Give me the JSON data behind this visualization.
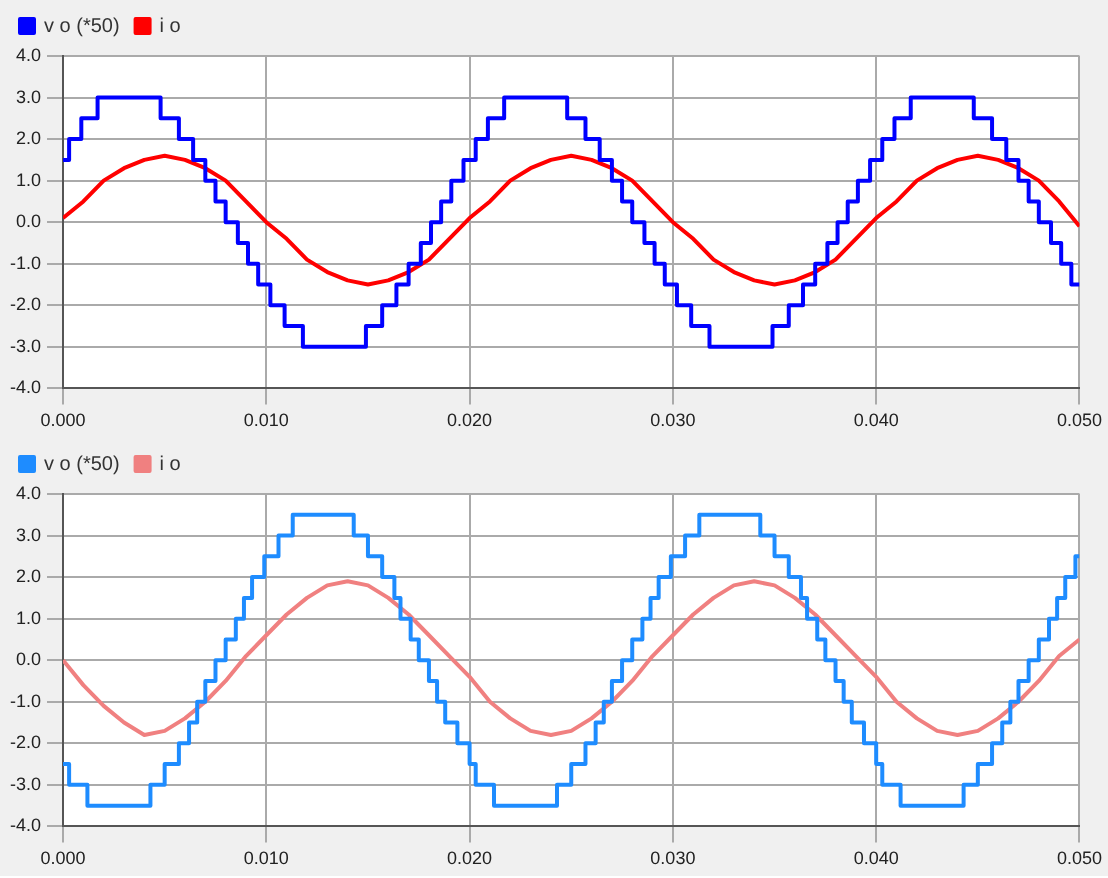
{
  "chart_data": [
    {
      "type": "line",
      "legend": "top",
      "grid": true,
      "marker": "none",
      "line_style": "solid",
      "xlim": [
        0,
        0.05
      ],
      "xticks": [
        {
          "value": 0,
          "label": "0.000"
        },
        {
          "value": 0.01,
          "label": "0.010"
        },
        {
          "value": 0.02,
          "label": "0.020"
        },
        {
          "value": 0.03,
          "label": "0.030"
        },
        {
          "value": 0.04,
          "label": "0.040"
        },
        {
          "value": 0.05,
          "label": "0.050"
        }
      ],
      "ylim": [
        -4,
        4
      ],
      "yticks": [
        {
          "value": -4,
          "label": "-4.0"
        },
        {
          "value": -3,
          "label": "-3.0"
        },
        {
          "value": -2,
          "label": "-2.0"
        },
        {
          "value": -1,
          "label": "-1.0"
        },
        {
          "value": 0,
          "label": "0.0"
        },
        {
          "value": 1,
          "label": "1.0"
        },
        {
          "value": 2,
          "label": "2.0"
        },
        {
          "value": 3,
          "label": "3.0"
        },
        {
          "value": 4,
          "label": "4.0"
        }
      ],
      "series": [
        {
          "name": "v o (*50)",
          "type": "step",
          "color": "#0000ff",
          "x": [
            0,
            0.0003,
            0.0009,
            0.0017,
            0.0048,
            0.0057,
            0.0064,
            0.007,
            0.0075,
            0.008,
            0.0086,
            0.0091,
            0.0096,
            0.0102,
            0.0109,
            0.0118,
            0.0149,
            0.0157,
            0.0164,
            0.017,
            0.0176,
            0.0181,
            0.0186,
            0.0191,
            0.0197,
            0.0203,
            0.0209,
            0.0217,
            0.0248,
            0.0257,
            0.0264,
            0.027,
            0.0275,
            0.028,
            0.0286,
            0.0291,
            0.0296,
            0.0302,
            0.0309,
            0.0318,
            0.0349,
            0.0357,
            0.0364,
            0.037,
            0.0376,
            0.0381,
            0.0386,
            0.0391,
            0.0397,
            0.0403,
            0.0409,
            0.0417,
            0.0448,
            0.0457,
            0.0464,
            0.047,
            0.0475,
            0.048,
            0.0486,
            0.0491,
            0.0496,
            0.05
          ],
          "values": [
            1.5,
            2.0,
            2.5,
            3.0,
            2.5,
            2.0,
            1.5,
            1.0,
            0.5,
            0,
            -0.5,
            -1.0,
            -1.5,
            -2.0,
            -2.5,
            -3.0,
            -2.5,
            -2.0,
            -1.5,
            -1.0,
            -0.5,
            0,
            0.5,
            1.0,
            1.5,
            2.0,
            2.5,
            3.0,
            2.5,
            2.0,
            1.5,
            1.0,
            0.5,
            0,
            -0.5,
            -1.0,
            -1.5,
            -2.0,
            -2.5,
            -3.0,
            -2.5,
            -2.0,
            -1.5,
            -1.0,
            -0.5,
            0,
            0.5,
            1.0,
            1.5,
            2.0,
            2.5,
            3.0,
            2.5,
            2.0,
            1.5,
            1.0,
            0.5,
            0,
            -0.5,
            -1.0,
            -1.5,
            -1.5
          ]
        },
        {
          "name": "i o",
          "type": "line",
          "color": "#ff0000",
          "x": [
            0,
            0.001,
            0.002,
            0.003,
            0.004,
            0.005,
            0.006,
            0.007,
            0.008,
            0.009,
            0.01,
            0.011,
            0.012,
            0.013,
            0.014,
            0.015,
            0.016,
            0.017,
            0.018,
            0.019,
            0.02,
            0.021,
            0.022,
            0.023,
            0.024,
            0.025,
            0.026,
            0.027,
            0.028,
            0.029,
            0.03,
            0.031,
            0.032,
            0.033,
            0.034,
            0.035,
            0.036,
            0.037,
            0.038,
            0.039,
            0.04,
            0.041,
            0.042,
            0.043,
            0.044,
            0.045,
            0.046,
            0.047,
            0.048,
            0.049,
            0.05
          ],
          "values": [
            0.1,
            0.5,
            1.0,
            1.3,
            1.5,
            1.6,
            1.5,
            1.3,
            1.0,
            0.5,
            0.0,
            -0.4,
            -0.9,
            -1.2,
            -1.4,
            -1.5,
            -1.4,
            -1.2,
            -0.9,
            -0.4,
            0.1,
            0.5,
            1.0,
            1.3,
            1.5,
            1.6,
            1.5,
            1.3,
            1.0,
            0.5,
            0.0,
            -0.4,
            -0.9,
            -1.2,
            -1.4,
            -1.5,
            -1.4,
            -1.2,
            -0.9,
            -0.4,
            0.1,
            0.5,
            1.0,
            1.3,
            1.5,
            1.6,
            1.5,
            1.3,
            1.0,
            0.5,
            -0.1
          ]
        }
      ]
    },
    {
      "type": "line",
      "legend": "top",
      "grid": true,
      "marker": "none",
      "line_style": "solid",
      "xlim": [
        0,
        0.05
      ],
      "xticks": [
        {
          "value": 0,
          "label": "0.000"
        },
        {
          "value": 0.01,
          "label": "0.010"
        },
        {
          "value": 0.02,
          "label": "0.020"
        },
        {
          "value": 0.03,
          "label": "0.030"
        },
        {
          "value": 0.04,
          "label": "0.040"
        },
        {
          "value": 0.05,
          "label": "0.050"
        }
      ],
      "ylim": [
        -4,
        4
      ],
      "yticks": [
        {
          "value": -4,
          "label": "-4.0"
        },
        {
          "value": -3,
          "label": "-3.0"
        },
        {
          "value": -2,
          "label": "-2.0"
        },
        {
          "value": -1,
          "label": "-1.0"
        },
        {
          "value": 0,
          "label": "0.0"
        },
        {
          "value": 1,
          "label": "1.0"
        },
        {
          "value": 2,
          "label": "2.0"
        },
        {
          "value": 3,
          "label": "3.0"
        },
        {
          "value": 4,
          "label": "4.0"
        }
      ],
      "series": [
        {
          "name": "v o (*50)",
          "type": "step",
          "color": "#1e8cff",
          "x": [
            0,
            0.0003,
            0.0012,
            0.0043,
            0.005,
            0.0057,
            0.0062,
            0.0066,
            0.007,
            0.0075,
            0.008,
            0.0085,
            0.0089,
            0.0093,
            0.0099,
            0.0106,
            0.0113,
            0.0143,
            0.015,
            0.0157,
            0.0163,
            0.0166,
            0.0171,
            0.0175,
            0.018,
            0.0184,
            0.0188,
            0.0194,
            0.02,
            0.0203,
            0.0212,
            0.0243,
            0.025,
            0.0257,
            0.0262,
            0.0266,
            0.027,
            0.0275,
            0.028,
            0.0285,
            0.0289,
            0.0293,
            0.0299,
            0.0306,
            0.0313,
            0.0343,
            0.035,
            0.0357,
            0.0363,
            0.0366,
            0.0371,
            0.0375,
            0.038,
            0.0384,
            0.0388,
            0.0394,
            0.04,
            0.0403,
            0.0412,
            0.0443,
            0.045,
            0.0457,
            0.0462,
            0.0466,
            0.047,
            0.0475,
            0.048,
            0.0485,
            0.0489,
            0.0493,
            0.0498,
            0.05
          ],
          "values": [
            -2.5,
            -3.0,
            -3.5,
            -3.0,
            -2.5,
            -2.0,
            -1.5,
            -1.0,
            -0.5,
            0,
            0.5,
            1.0,
            1.5,
            2.0,
            2.5,
            3.0,
            3.5,
            3.0,
            2.5,
            2.0,
            1.5,
            1.0,
            0.5,
            0,
            -0.5,
            -1.0,
            -1.5,
            -2.0,
            -2.5,
            -3.0,
            -3.5,
            -3.0,
            -2.5,
            -2.0,
            -1.5,
            -1.0,
            -0.5,
            0,
            0.5,
            1.0,
            1.5,
            2.0,
            2.5,
            3.0,
            3.5,
            3.0,
            2.5,
            2.0,
            1.5,
            1.0,
            0.5,
            0,
            -0.5,
            -1.0,
            -1.5,
            -2.0,
            -2.5,
            -3.0,
            -3.5,
            -3.0,
            -2.5,
            -2.0,
            -1.5,
            -1.0,
            -0.5,
            0,
            0.5,
            1.0,
            1.5,
            2.0,
            2.5,
            2.5
          ]
        },
        {
          "name": "i o",
          "type": "line",
          "color": "#f08080",
          "x": [
            0,
            0.001,
            0.002,
            0.003,
            0.004,
            0.005,
            0.006,
            0.007,
            0.008,
            0.009,
            0.01,
            0.011,
            0.012,
            0.013,
            0.014,
            0.015,
            0.016,
            0.017,
            0.018,
            0.019,
            0.02,
            0.021,
            0.022,
            0.023,
            0.024,
            0.025,
            0.026,
            0.027,
            0.028,
            0.029,
            0.03,
            0.031,
            0.032,
            0.033,
            0.034,
            0.035,
            0.036,
            0.037,
            0.038,
            0.039,
            0.04,
            0.041,
            0.042,
            0.043,
            0.044,
            0.045,
            0.046,
            0.047,
            0.048,
            0.049,
            0.05
          ],
          "values": [
            0.0,
            -0.6,
            -1.1,
            -1.5,
            -1.8,
            -1.7,
            -1.4,
            -1.0,
            -0.5,
            0.1,
            0.6,
            1.1,
            1.5,
            1.8,
            1.9,
            1.8,
            1.5,
            1.1,
            0.6,
            0.1,
            -0.4,
            -1.0,
            -1.4,
            -1.7,
            -1.8,
            -1.7,
            -1.4,
            -1.0,
            -0.5,
            0.1,
            0.6,
            1.1,
            1.5,
            1.8,
            1.9,
            1.8,
            1.5,
            1.1,
            0.6,
            0.1,
            -0.4,
            -1.0,
            -1.4,
            -1.7,
            -1.8,
            -1.7,
            -1.4,
            -1.0,
            -0.5,
            0.1,
            0.5
          ]
        }
      ]
    }
  ]
}
